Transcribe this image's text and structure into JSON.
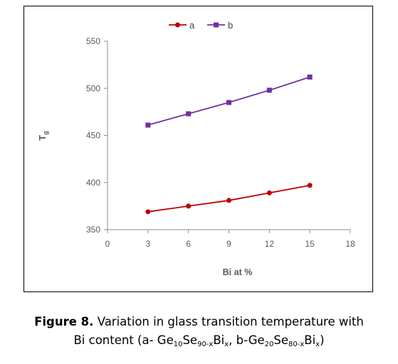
{
  "chart_data": {
    "type": "line",
    "x": [
      3,
      6,
      9,
      12,
      15
    ],
    "series": [
      {
        "name": "a",
        "values": [
          369,
          375,
          381,
          389,
          397
        ],
        "color": "#c00000",
        "marker": "circle"
      },
      {
        "name": "b",
        "values": [
          461,
          473,
          485,
          498,
          512
        ],
        "color": "#7030a0",
        "marker": "square"
      }
    ],
    "xlabel": "Bi at %",
    "ylabel": "Tg",
    "ylabel_main": "T",
    "ylabel_sub": "g",
    "xlim": [
      0,
      18
    ],
    "ylim": [
      350,
      550
    ],
    "xticks": [
      0,
      3,
      6,
      9,
      12,
      15,
      18
    ],
    "yticks": [
      350,
      400,
      450,
      500,
      550
    ],
    "grid": false,
    "legend_position": "top-center"
  },
  "caption": {
    "label": "Figure 8.",
    "text_line1": "Variation in glass transition temperature with",
    "line2_prefix": "Bi content (a- Ge",
    "a_ge_sub": "10",
    "a_se": "Se",
    "a_se_sub": "90-x",
    "a_bi": "Bi",
    "a_bi_sub": "x",
    "mid": ", b-Ge",
    "b_ge_sub": "20",
    "b_se": "Se",
    "b_se_sub": "80-x",
    "b_bi": "Bi",
    "b_bi_sub": "x",
    "suffix": ")"
  }
}
